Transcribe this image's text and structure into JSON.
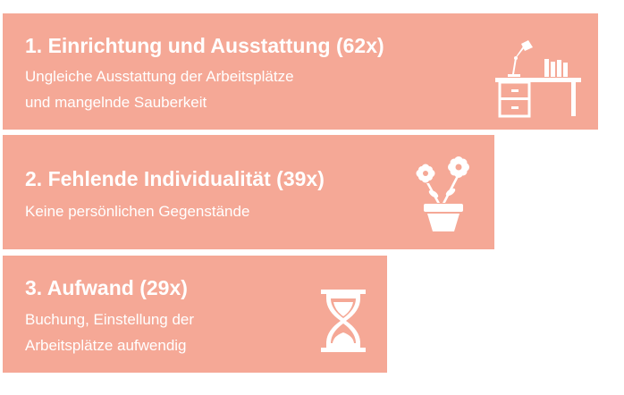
{
  "items": [
    {
      "title": "1. Einrichtung und Ausstattung (62x)",
      "description": "Ungleiche Ausstattung der Arbeitsplätze\nund mangelnde Sauberkeit",
      "icon": "desk-icon",
      "count": 62
    },
    {
      "title": "2. Fehlende Individualität (39x)",
      "description": "Keine persönlichen Gegenstände",
      "icon": "flower-pot-icon",
      "count": 39
    },
    {
      "title": "3. Aufwand (29x)",
      "description": "Buchung, Einstellung der\nArbeitsplätze aufwendig",
      "icon": "hourglass-icon",
      "count": 29
    }
  ],
  "colors": {
    "card_background": "#f5a896",
    "text": "#ffffff"
  }
}
